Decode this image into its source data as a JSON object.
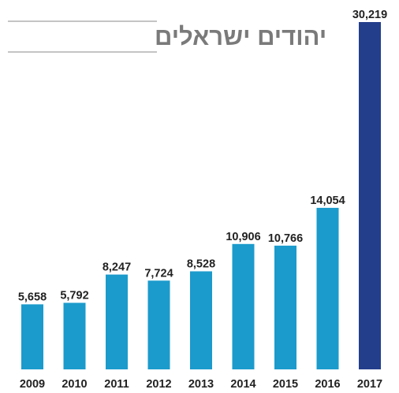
{
  "chart_data": {
    "type": "bar",
    "title": "יהודים ישראלים",
    "categories": [
      "2009",
      "2010",
      "2011",
      "2012",
      "2013",
      "2014",
      "2015",
      "2016",
      "2017"
    ],
    "values": [
      5658,
      5792,
      8247,
      7724,
      8528,
      10906,
      10766,
      14054,
      30219
    ],
    "value_labels": [
      "5,658",
      "5,792",
      "8,247",
      "7,724",
      "8,528",
      "10,906",
      "10,766",
      "14,054",
      "30,219"
    ],
    "ylim": [
      0,
      30219
    ],
    "grid": false,
    "colors": {
      "bar": "#1b9bcc",
      "highlight_bar": "#233e8b",
      "title": "#7a7a7a",
      "text": "#222222"
    },
    "highlight_category": "2017"
  }
}
